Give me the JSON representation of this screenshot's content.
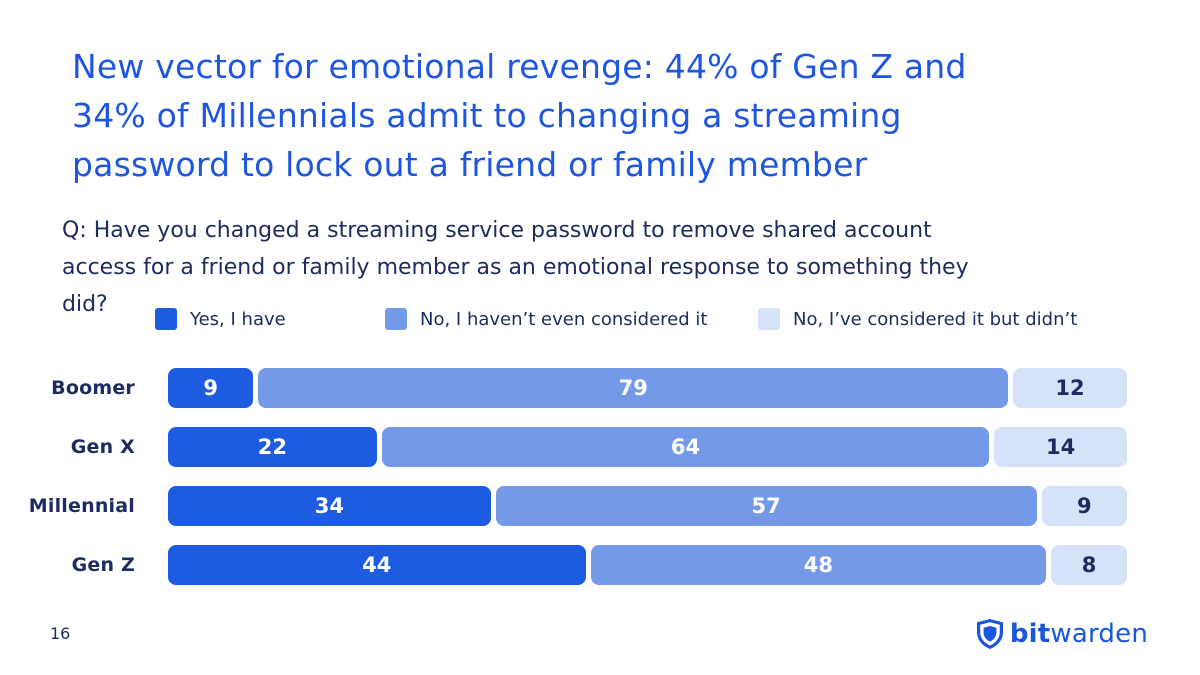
{
  "slide": {
    "page_number": "16",
    "title_lines": [
      "New vector for emotional revenge: 44% of Gen Z and",
      "34% of Millennials admit to changing a streaming",
      "password to lock out a friend or family member"
    ],
    "question_lines": [
      "Q: Have you changed a streaming service password to remove shared account",
      "access for a friend or family member as an emotional response to something they",
      "did?"
    ],
    "colors": {
      "title_blue": "#1e56e0",
      "text_navy": "#1d2b5e",
      "logo_blue": "#1a56dd"
    },
    "logo": {
      "icon": "shield-icon",
      "brand_bold": "bit",
      "brand_light": "warden"
    }
  },
  "chart_data": {
    "type": "bar",
    "subtype": "horizontal_stacked",
    "categories": [
      "Boomer",
      "Gen X",
      "Millennial",
      "Gen Z"
    ],
    "series": [
      {
        "name": "Yes, I have",
        "color": "#1d5ce0",
        "value_label_color": "#ffffff",
        "values": [
          9,
          22,
          34,
          44
        ]
      },
      {
        "name": "No, I haven’t even considered it",
        "color": "#7499e9",
        "value_label_color": "#ffffff",
        "values": [
          79,
          64,
          57,
          48
        ]
      },
      {
        "name": "No, I’ve considered it but didn’t",
        "color": "#d6e2f8",
        "value_label_color": "#1d2b5e",
        "values": [
          12,
          14,
          9,
          8
        ]
      }
    ],
    "xlim": [
      0,
      100
    ],
    "value_labels": "centered_in_segment",
    "grid": false,
    "legend_position": "top"
  }
}
